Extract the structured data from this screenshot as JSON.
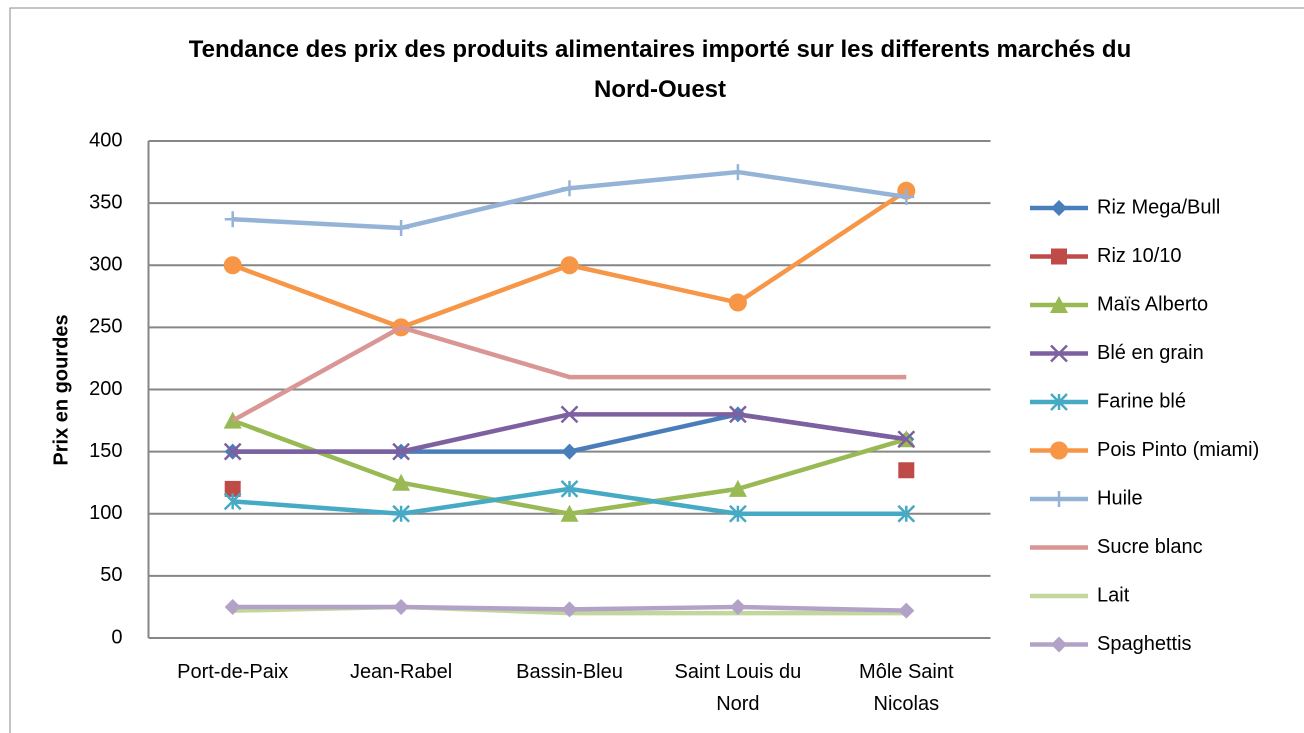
{
  "chart_data": {
    "type": "line",
    "title": "Tendance des prix des produits alimentaires importé sur les differents marchés du Nord-Ouest",
    "y_label": "Prix en gourdes",
    "categories": [
      "Port-de-Paix",
      "Jean-Rabel",
      "Bassin-Bleu",
      "Saint Louis du Nord",
      "Môle Saint Nicolas"
    ],
    "ylim": [
      0,
      400
    ],
    "yticks": [
      0,
      50,
      100,
      150,
      200,
      250,
      300,
      350,
      400
    ],
    "grid": true,
    "legend": "right",
    "series": [
      {
        "name": "Riz Mega/Bull",
        "color": "#4a7ebb",
        "marker": "diamond",
        "values": [
          150,
          150,
          150,
          180,
          160
        ]
      },
      {
        "name": "Riz 10/10",
        "color": "#be4b48",
        "marker": "square",
        "line": false,
        "values": [
          120,
          null,
          null,
          null,
          135
        ]
      },
      {
        "name": "Maïs Alberto",
        "color": "#98b954",
        "marker": "triangle",
        "values": [
          175,
          125,
          100,
          120,
          160
        ]
      },
      {
        "name": "Blé en grain",
        "color": "#7d60a0",
        "marker": "x",
        "values": [
          150,
          150,
          180,
          180,
          160
        ]
      },
      {
        "name": "Farine blé",
        "color": "#46aac5",
        "marker": "asterisk",
        "values": [
          110,
          100,
          120,
          100,
          100
        ]
      },
      {
        "name": "Pois Pinto (miami)",
        "color": "#f79646",
        "marker": "circle",
        "values": [
          300,
          250,
          300,
          270,
          360
        ]
      },
      {
        "name": "Huile",
        "color": "#95b3d7",
        "marker": "plus",
        "values": [
          337,
          330,
          362,
          375,
          355
        ]
      },
      {
        "name": "Sucre blanc",
        "color": "#d99694",
        "marker": "none",
        "values": [
          175,
          250,
          210,
          210,
          210
        ]
      },
      {
        "name": "Lait",
        "color": "#c3d69b",
        "marker": "none",
        "values": [
          22,
          25,
          20,
          20,
          20
        ]
      },
      {
        "name": "Spaghettis",
        "color": "#b3a2c7",
        "marker": "diamond",
        "values": [
          25,
          25,
          23,
          25,
          22
        ]
      }
    ]
  }
}
